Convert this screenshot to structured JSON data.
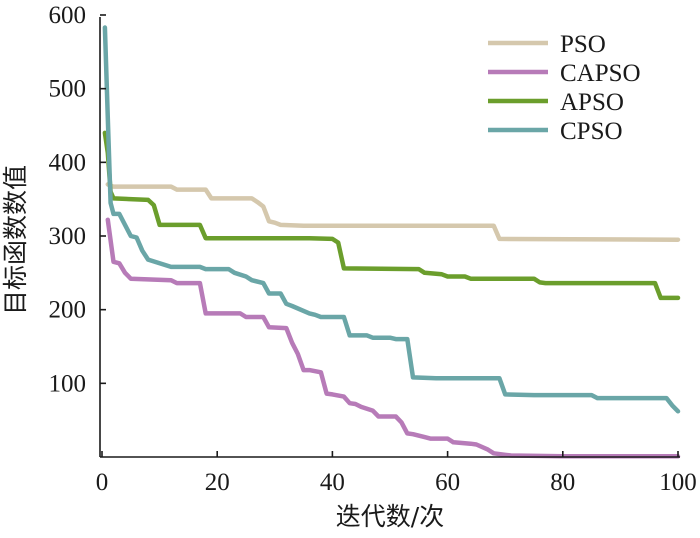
{
  "chart_data": {
    "type": "line",
    "title": "",
    "xlabel": "迭代数/次",
    "ylabel": "目标函数数值",
    "xlim": [
      0,
      100
    ],
    "ylim": [
      0,
      600
    ],
    "xticks": [
      0,
      20,
      40,
      60,
      80,
      100
    ],
    "yticks": [
      100,
      200,
      300,
      400,
      500,
      600
    ],
    "legend_position": "top-right",
    "grid": false,
    "series": [
      {
        "name": "PSO",
        "color": "#d5c8ad",
        "x": [
          1,
          1.5,
          2,
          12,
          13,
          18,
          19,
          26,
          27,
          28,
          29,
          30,
          31,
          35,
          60,
          68,
          69,
          100
        ],
        "y": [
          370,
          368,
          367,
          367,
          363,
          363,
          351,
          351,
          346,
          340,
          320,
          318,
          315,
          314,
          314,
          314,
          296,
          295
        ]
      },
      {
        "name": "CAPSO",
        "color": "#b77bb8",
        "x": [
          1,
          2,
          3,
          4,
          5,
          12,
          13,
          17,
          18,
          24,
          25,
          28,
          29,
          32,
          33,
          34,
          35,
          36,
          38,
          39,
          40,
          42,
          43,
          44,
          45,
          47,
          48,
          51,
          52,
          53,
          54,
          56,
          57,
          60,
          61,
          64,
          65,
          67,
          68,
          70,
          71,
          80,
          100
        ],
        "y": [
          322,
          265,
          263,
          250,
          242,
          240,
          236,
          236,
          195,
          195,
          190,
          190,
          176,
          175,
          155,
          140,
          118,
          118,
          115,
          86,
          85,
          82,
          73,
          72,
          68,
          63,
          55,
          55,
          47,
          32,
          31,
          27,
          25,
          25,
          20,
          18,
          17,
          10,
          5,
          3,
          2,
          1,
          1
        ]
      },
      {
        "name": "APSO",
        "color": "#6b9e2c",
        "x": [
          0.5,
          1,
          1.5,
          2,
          8,
          9,
          10,
          17,
          18,
          36,
          40,
          41,
          42,
          55,
          56,
          59,
          60,
          63,
          64,
          75,
          76,
          77,
          96,
          97,
          100
        ],
        "y": [
          440,
          413,
          360,
          351,
          349,
          342,
          315,
          315,
          297,
          297,
          296,
          291,
          256,
          255,
          250,
          248,
          245,
          245,
          242,
          242,
          237,
          236,
          236,
          216,
          216
        ]
      },
      {
        "name": "CPSO",
        "color": "#6aa6a7",
        "x": [
          0.5,
          1,
          1.5,
          2,
          3,
          4,
          5,
          6,
          7,
          8,
          12,
          17,
          18,
          22,
          23,
          25,
          26,
          28,
          29,
          31,
          32,
          33,
          36,
          37,
          38,
          39,
          41,
          42,
          43,
          46,
          47,
          50,
          51,
          53,
          54,
          58,
          69,
          70,
          75,
          85,
          86,
          98,
          99,
          100
        ],
        "y": [
          583,
          460,
          345,
          330,
          330,
          315,
          300,
          298,
          280,
          268,
          258,
          258,
          255,
          255,
          250,
          245,
          240,
          236,
          222,
          222,
          208,
          205,
          195,
          193,
          190,
          190,
          190,
          190,
          165,
          165,
          162,
          162,
          160,
          160,
          108,
          107,
          107,
          85,
          84,
          84,
          80,
          80,
          70,
          62
        ]
      }
    ]
  }
}
